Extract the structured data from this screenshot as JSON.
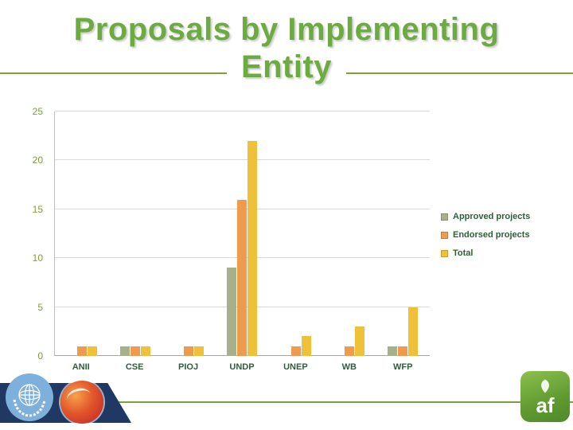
{
  "title": {
    "line1": "Proposals by Implementing",
    "line2": "Entity"
  },
  "chart_data": {
    "type": "bar",
    "title": "Proposals by Implementing Entity",
    "categories": [
      "ANII",
      "CSE",
      "PIOJ",
      "UNDP",
      "UNEP",
      "WB",
      "WFP"
    ],
    "series": [
      {
        "name": "Approved projects",
        "color": "#A6B18C",
        "values": [
          0,
          1,
          0,
          9,
          0,
          0,
          1
        ]
      },
      {
        "name": "Endorsed projects",
        "color": "#EF9A4C",
        "values": [
          1,
          1,
          1,
          16,
          1,
          1,
          1
        ]
      },
      {
        "name": "Total",
        "color": "#EFC13B",
        "values": [
          1,
          1,
          1,
          22,
          2,
          3,
          5
        ]
      }
    ],
    "ylim": [
      0,
      25
    ],
    "yticks": [
      0,
      5,
      10,
      15,
      20,
      25
    ],
    "grid": true,
    "legend_position": "right"
  },
  "footer": {
    "af_logo_text": "af"
  },
  "colors": {
    "title_green": "#6CAB3F",
    "rule_green": "#7AA23C",
    "axis_label_green": "#7F9C3D",
    "category_text_green": "#2D5F38",
    "gridline_gray": "#D9D9D9",
    "un_blue": "#7EB0DC",
    "banner_navy": "#203864",
    "logo_red": "#C02025",
    "af_logo_green": "#5F9A30"
  }
}
